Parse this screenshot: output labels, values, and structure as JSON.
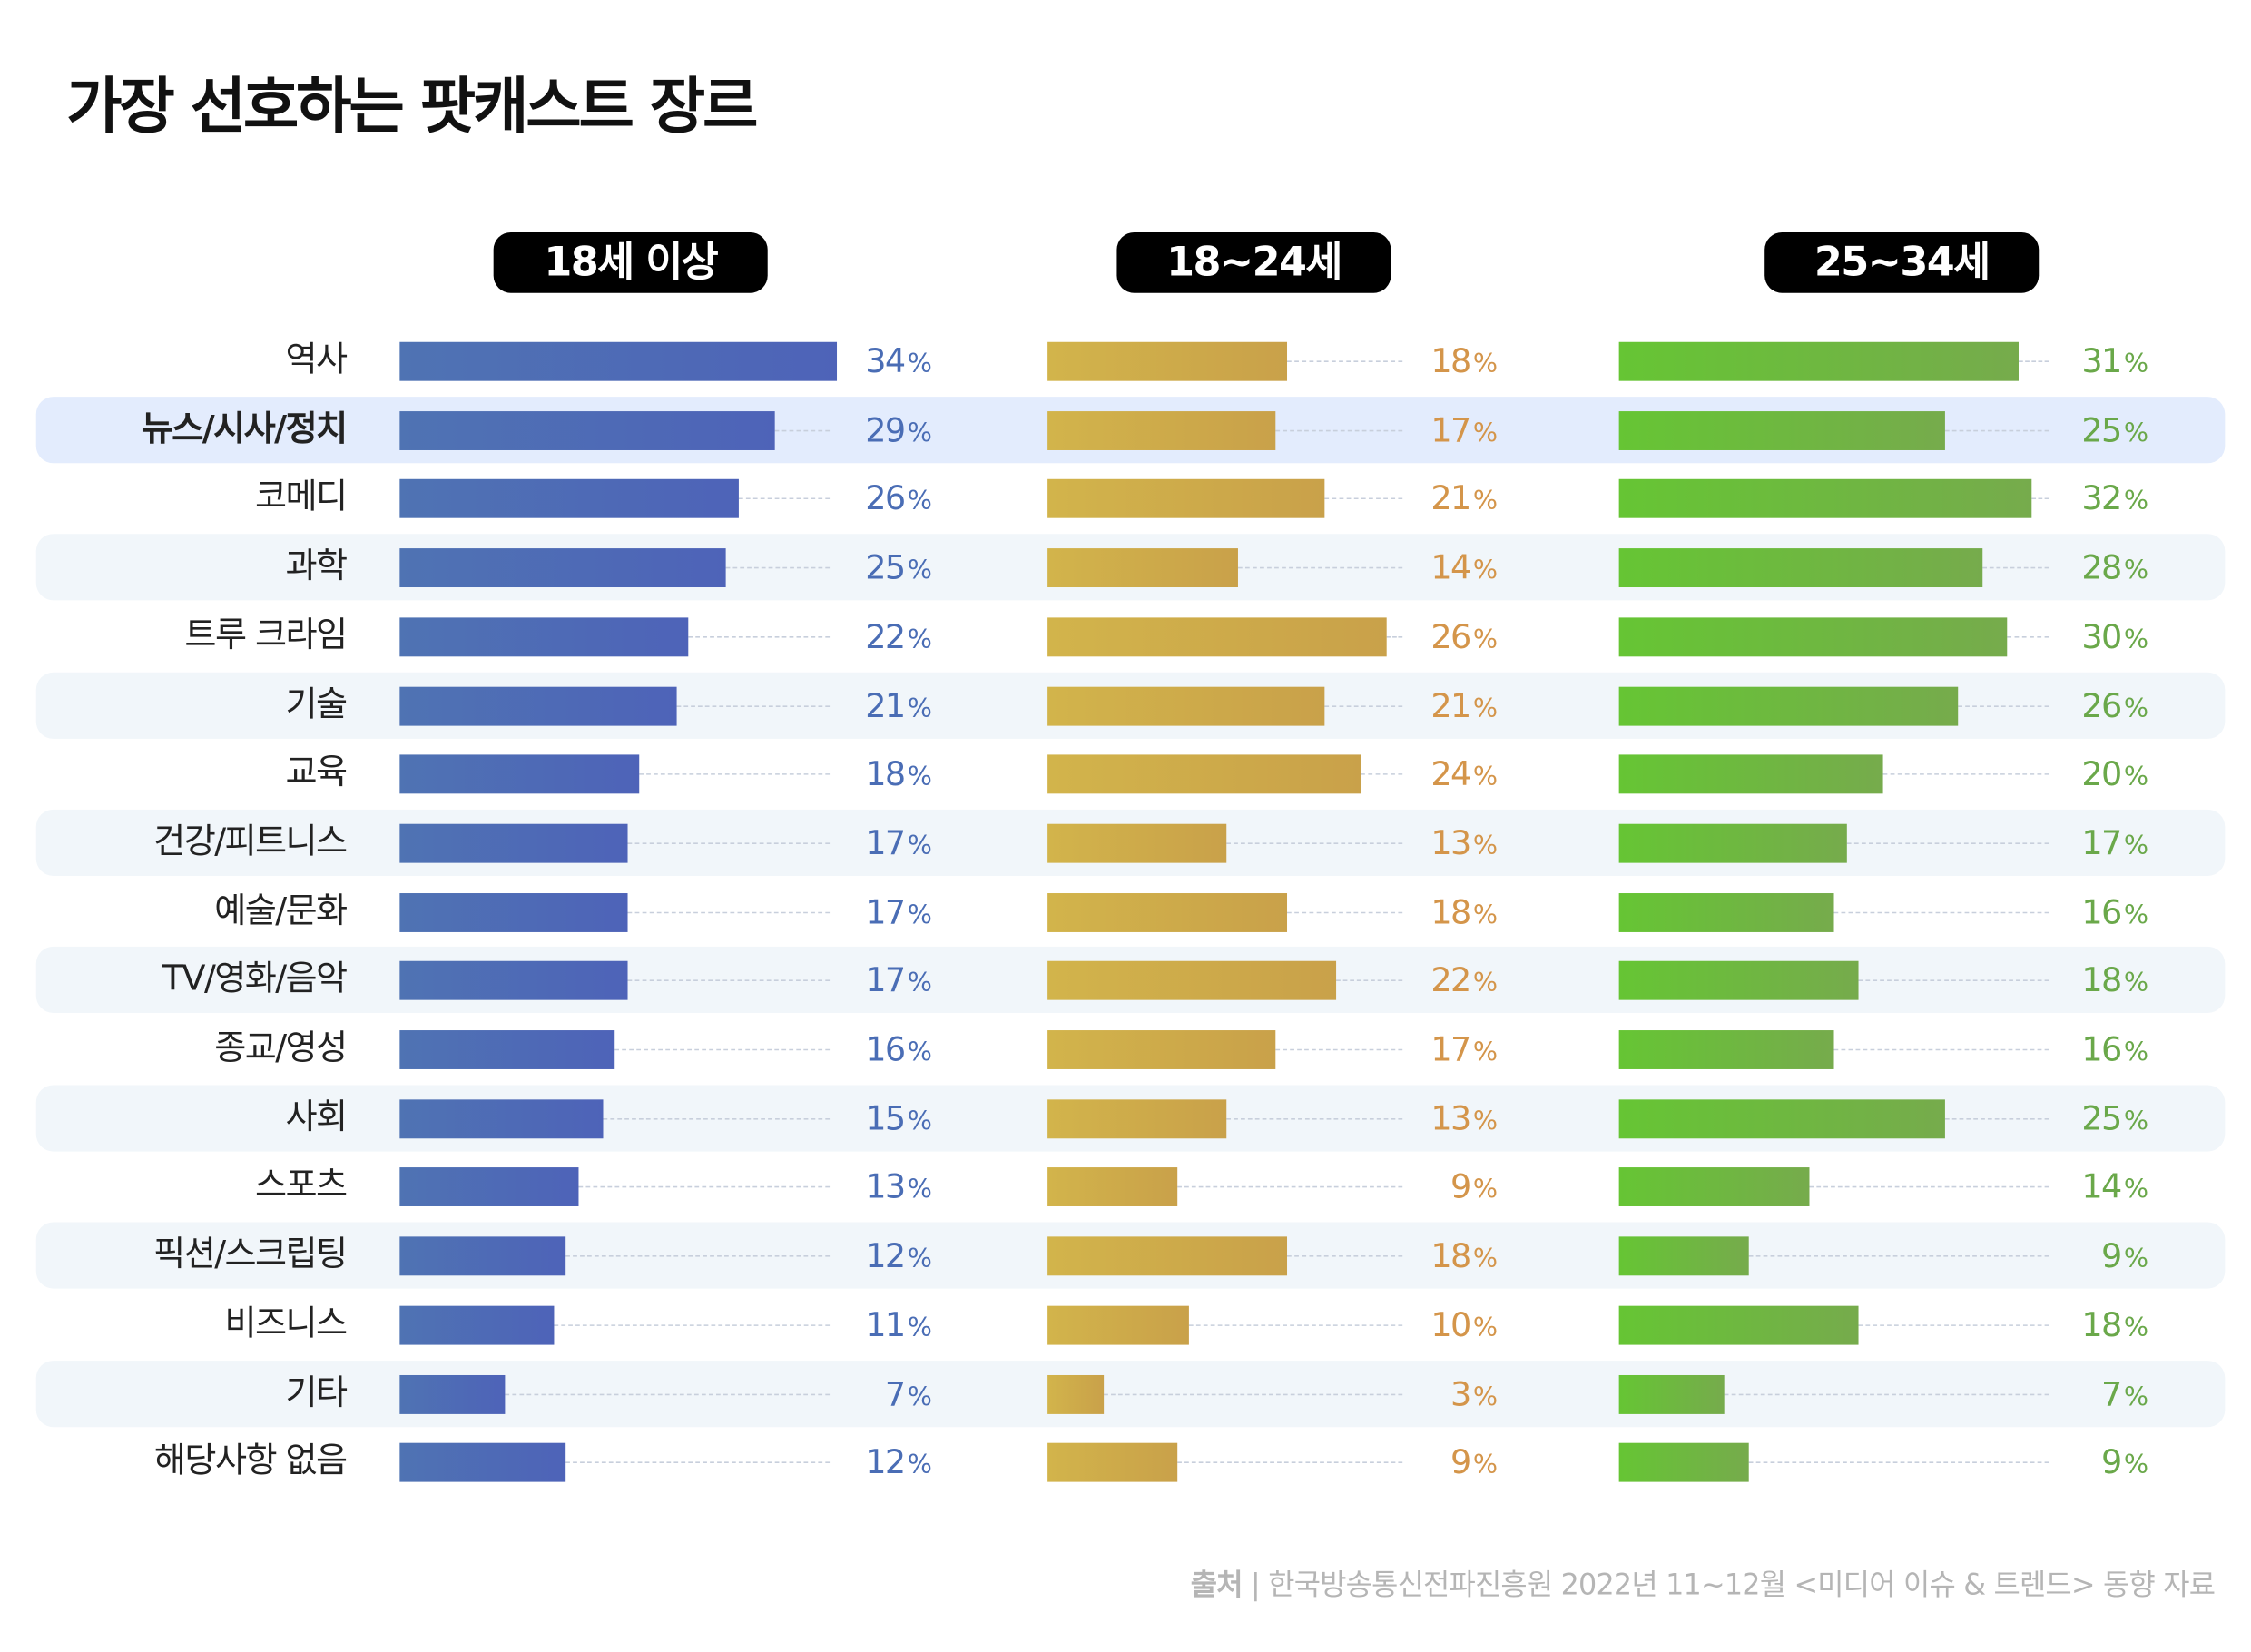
{
  "title": "가장 선호하는 팟캐스트 장르",
  "source": {
    "label": "출처",
    "separator": "|",
    "text": "한국방송통신전파진흥원 2022년 11~12월 <미디어 이슈 & 트렌드> 동향 자료"
  },
  "chart_data": {
    "type": "bar",
    "orientation": "horizontal",
    "title": "가장 선호하는 팟캐스트 장르",
    "unit": "%",
    "highlighted_category": "뉴스/시사/정치",
    "categories": [
      "역사",
      "뉴스/시사/정치",
      "코메디",
      "과학",
      "트루 크라임",
      "기술",
      "교육",
      "건강/피트니스",
      "예술/문화",
      "TV/영화/음악",
      "종교/영성",
      "사회",
      "스포츠",
      "픽션/스크립팅",
      "비즈니스",
      "기타",
      "해당사항 없음"
    ],
    "series": [
      {
        "name": "18세 이상",
        "color": "#4f67b6",
        "label_color": "#4a6db5",
        "values": [
          34,
          29,
          26,
          25,
          22,
          21,
          18,
          17,
          17,
          17,
          16,
          15,
          13,
          12,
          11,
          7,
          12
        ]
      },
      {
        "name": "18~24세",
        "color": "#cfac4a",
        "label_color": "#d4954a",
        "values": [
          18,
          17,
          21,
          14,
          26,
          21,
          24,
          13,
          18,
          22,
          17,
          13,
          9,
          18,
          10,
          3,
          9
        ]
      },
      {
        "name": "25~34세",
        "color": "#6cc237",
        "label_color": "#6aa84a",
        "values": [
          31,
          25,
          32,
          28,
          30,
          26,
          20,
          17,
          16,
          18,
          16,
          25,
          14,
          9,
          18,
          7,
          9
        ]
      }
    ],
    "colors": {
      "band": "#f1f6fa",
      "highlight_band": "#e3ecfd"
    }
  }
}
